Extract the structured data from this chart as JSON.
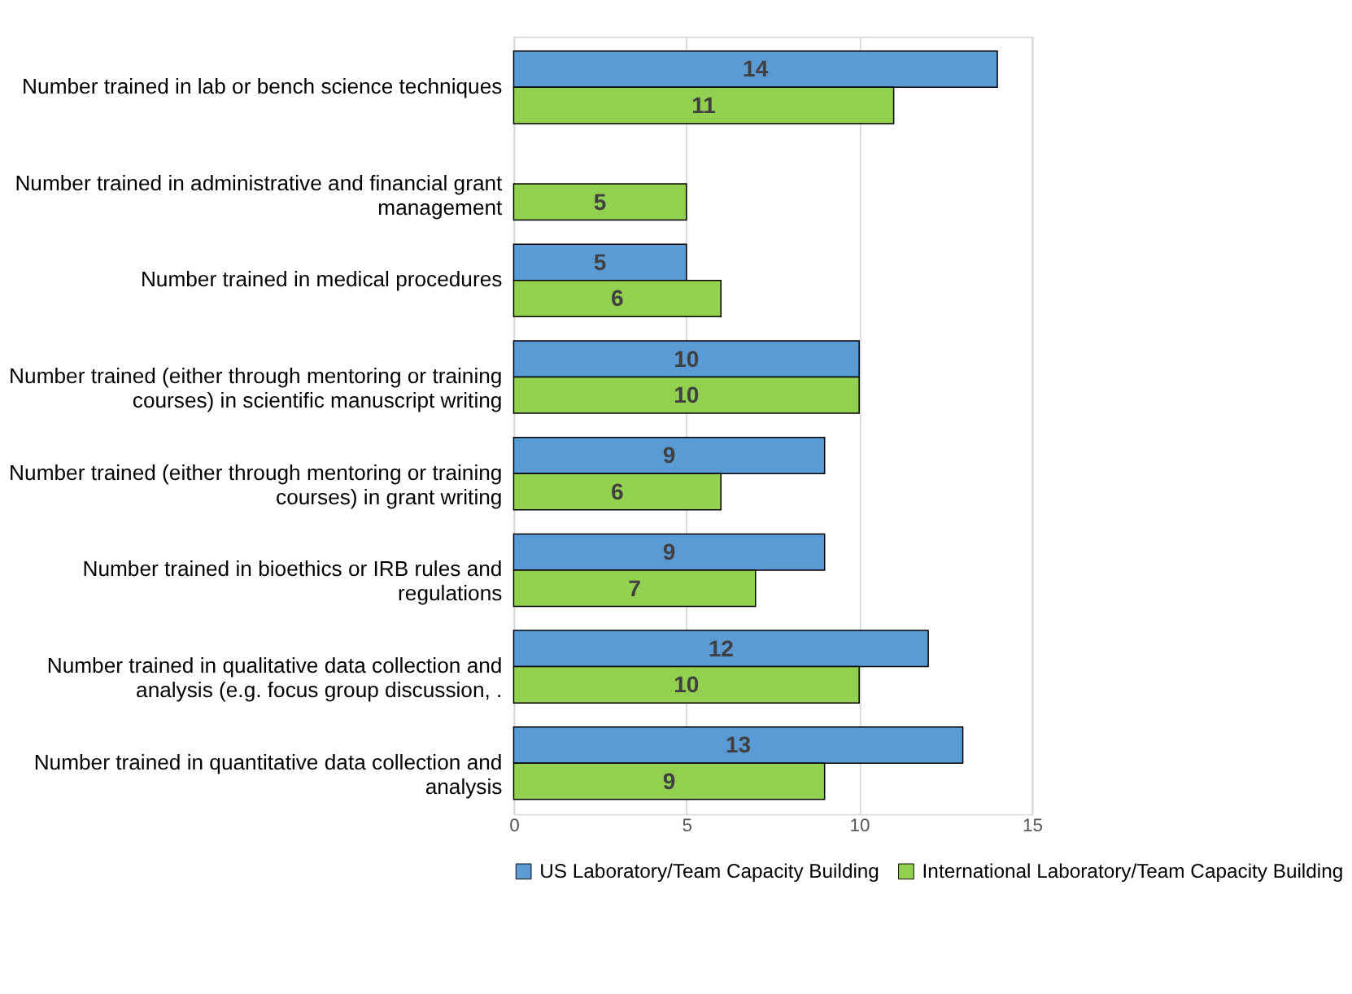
{
  "chart_data": {
    "type": "bar",
    "orientation": "horizontal",
    "categories": [
      "Number trained in lab or bench science techniques",
      "Number trained in administrative and financial grant management",
      "Number trained in medical procedures",
      "Number trained (either through mentoring or training courses) in scientific manuscript writing",
      "Number trained (either through mentoring or training courses) in grant writing",
      "Number trained in bioethics or IRB rules and regulations",
      "Number trained in qualitative data collection and analysis (e.g. focus group discussion, .",
      "Number trained in quantitative data collection and analysis"
    ],
    "series": [
      {
        "name": "US Laboratory/Team Capacity Building",
        "color": "#5b9bd5",
        "values": [
          14,
          null,
          5,
          10,
          9,
          9,
          12,
          13
        ]
      },
      {
        "name": "International Laboratory/Team Capacity Building",
        "color": "#92d050",
        "values": [
          11,
          5,
          6,
          10,
          6,
          7,
          10,
          9
        ]
      }
    ],
    "xlim": [
      0,
      15
    ],
    "xticks": [
      0,
      5,
      10,
      15
    ],
    "grid": "x",
    "legend": "bottom",
    "data_labels": true
  }
}
